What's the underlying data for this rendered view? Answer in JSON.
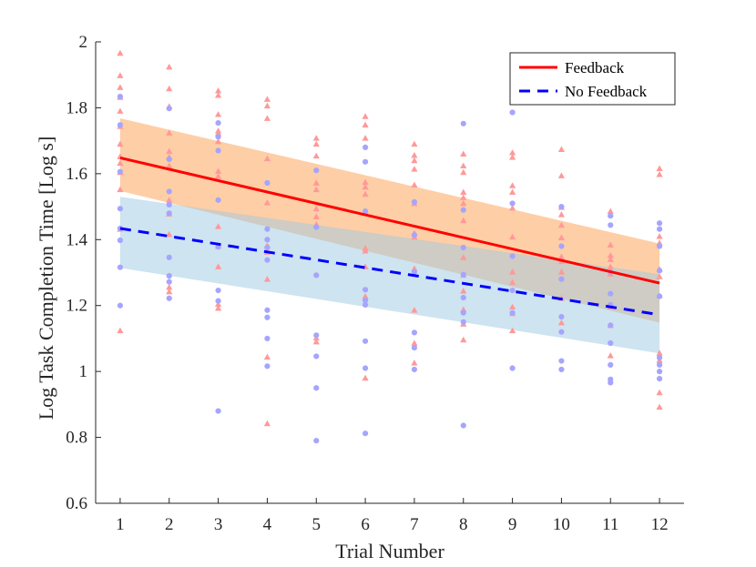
{
  "chart_data": {
    "type": "scatter",
    "title": "",
    "xlabel": "Trial Number",
    "ylabel": "Log Task Completion Time [Log s]",
    "xlim": [
      0.5,
      12.5
    ],
    "ylim": [
      0.6,
      2.0
    ],
    "x_ticks": [
      1,
      2,
      3,
      4,
      5,
      6,
      7,
      8,
      9,
      10,
      11,
      12
    ],
    "y_ticks": [
      "0.6",
      "0.8",
      "1",
      "1.2",
      "1.4",
      "1.6",
      "1.8",
      "2"
    ],
    "legend_position": "top-right",
    "legend": [
      {
        "name": "Feedback",
        "style": "solid",
        "color": "#ff0000"
      },
      {
        "name": "No Feedback",
        "style": "dashed",
        "color": "#0000ff"
      }
    ],
    "series": [
      {
        "name": "Feedback",
        "marker": "triangle",
        "marker_color": "#ff9999",
        "line_color": "#ff0000",
        "band_color": "#fdae6b",
        "fit_line": {
          "x": [
            1,
            12
          ],
          "y": [
            1.648,
            1.268
          ]
        },
        "band": {
          "x": [
            1,
            12
          ],
          "lower": [
            1.548,
            1.148
          ],
          "upper": [
            1.768,
            1.388
          ]
        },
        "points": [
          [
            1,
            1.966
          ],
          [
            1,
            1.898
          ],
          [
            1,
            1.862
          ],
          [
            1,
            1.832
          ],
          [
            1,
            1.79
          ],
          [
            1,
            1.744
          ],
          [
            1,
            1.69
          ],
          [
            1,
            1.652
          ],
          [
            1,
            1.632
          ],
          [
            1,
            1.604
          ],
          [
            1,
            1.552
          ],
          [
            1,
            1.432
          ],
          [
            1,
            1.124
          ],
          [
            2,
            1.924
          ],
          [
            2,
            1.858
          ],
          [
            2,
            1.804
          ],
          [
            2,
            1.724
          ],
          [
            2,
            1.668
          ],
          [
            2,
            1.65
          ],
          [
            2,
            1.624
          ],
          [
            2,
            1.52
          ],
          [
            2,
            1.478
          ],
          [
            2,
            1.416
          ],
          [
            2,
            1.256
          ],
          [
            2,
            1.242
          ],
          [
            3,
            1.852
          ],
          [
            3,
            1.838
          ],
          [
            3,
            1.78
          ],
          [
            3,
            1.73
          ],
          [
            3,
            1.722
          ],
          [
            3,
            1.698
          ],
          [
            3,
            1.608
          ],
          [
            3,
            1.592
          ],
          [
            3,
            1.44
          ],
          [
            3,
            1.38
          ],
          [
            3,
            1.318
          ],
          [
            3,
            1.204
          ],
          [
            3,
            1.192
          ],
          [
            4,
            1.826
          ],
          [
            4,
            1.806
          ],
          [
            4,
            1.768
          ],
          [
            4,
            1.646
          ],
          [
            4,
            1.512
          ],
          [
            4,
            1.382
          ],
          [
            4,
            1.362
          ],
          [
            4,
            1.28
          ],
          [
            4,
            1.044
          ],
          [
            4,
            0.842
          ],
          [
            5,
            1.708
          ],
          [
            5,
            1.69
          ],
          [
            5,
            1.654
          ],
          [
            5,
            1.572
          ],
          [
            5,
            1.552
          ],
          [
            5,
            1.494
          ],
          [
            5,
            1.47
          ],
          [
            5,
            1.446
          ],
          [
            5,
            1.102
          ],
          [
            5,
            1.09
          ],
          [
            6,
            1.774
          ],
          [
            6,
            1.748
          ],
          [
            6,
            1.708
          ],
          [
            6,
            1.574
          ],
          [
            6,
            1.56
          ],
          [
            6,
            1.538
          ],
          [
            6,
            1.486
          ],
          [
            6,
            1.374
          ],
          [
            6,
            1.366
          ],
          [
            6,
            1.318
          ],
          [
            6,
            1.228
          ],
          [
            6,
            0.98
          ],
          [
            7,
            1.69
          ],
          [
            7,
            1.656
          ],
          [
            7,
            1.64
          ],
          [
            7,
            1.614
          ],
          [
            7,
            1.566
          ],
          [
            7,
            1.51
          ],
          [
            7,
            1.42
          ],
          [
            7,
            1.408
          ],
          [
            7,
            1.312
          ],
          [
            7,
            1.186
          ],
          [
            7,
            1.086
          ],
          [
            7,
            1.026
          ],
          [
            8,
            1.66
          ],
          [
            8,
            1.624
          ],
          [
            8,
            1.604
          ],
          [
            8,
            1.544
          ],
          [
            8,
            1.528
          ],
          [
            8,
            1.51
          ],
          [
            8,
            1.458
          ],
          [
            8,
            1.346
          ],
          [
            8,
            1.292
          ],
          [
            8,
            1.244
          ],
          [
            8,
            1.188
          ],
          [
            8,
            1.144
          ],
          [
            8,
            1.096
          ],
          [
            9,
            1.664
          ],
          [
            9,
            1.65
          ],
          [
            9,
            1.564
          ],
          [
            9,
            1.544
          ],
          [
            9,
            1.496
          ],
          [
            9,
            1.408
          ],
          [
            9,
            1.302
          ],
          [
            9,
            1.27
          ],
          [
            9,
            1.196
          ],
          [
            9,
            1.176
          ],
          [
            9,
            1.124
          ],
          [
            10,
            1.674
          ],
          [
            10,
            1.594
          ],
          [
            10,
            1.498
          ],
          [
            10,
            1.476
          ],
          [
            10,
            1.444
          ],
          [
            10,
            1.406
          ],
          [
            10,
            1.348
          ],
          [
            10,
            1.334
          ],
          [
            10,
            1.302
          ],
          [
            10,
            1.222
          ],
          [
            10,
            1.148
          ],
          [
            11,
            1.486
          ],
          [
            11,
            1.478
          ],
          [
            11,
            1.384
          ],
          [
            11,
            1.352
          ],
          [
            11,
            1.34
          ],
          [
            11,
            1.318
          ],
          [
            11,
            1.296
          ],
          [
            11,
            1.196
          ],
          [
            11,
            1.14
          ],
          [
            11,
            1.048
          ],
          [
            12,
            1.616
          ],
          [
            12,
            1.598
          ],
          [
            12,
            1.41
          ],
          [
            12,
            1.39
          ],
          [
            12,
            1.31
          ],
          [
            12,
            1.288
          ],
          [
            12,
            1.23
          ],
          [
            12,
            1.056
          ],
          [
            12,
            1.034
          ],
          [
            12,
            0.936
          ],
          [
            12,
            0.892
          ]
        ]
      },
      {
        "name": "No Feedback",
        "marker": "circle",
        "marker_color": "#a5a5ff",
        "line_color": "#0000ff",
        "band_color": "#9ecae1",
        "fit_line": {
          "x": [
            1,
            12
          ],
          "y": [
            1.434,
            1.172
          ]
        },
        "band": {
          "x": [
            1,
            12
          ],
          "lower": [
            1.314,
            1.055
          ],
          "upper": [
            1.53,
            1.295
          ]
        },
        "points": [
          [
            1,
            1.834
          ],
          [
            1,
            1.748
          ],
          [
            1,
            1.606
          ],
          [
            1,
            1.494
          ],
          [
            1,
            1.434
          ],
          [
            1,
            1.398
          ],
          [
            1,
            1.316
          ],
          [
            1,
            1.2
          ],
          [
            2,
            1.798
          ],
          [
            2,
            1.644
          ],
          [
            2,
            1.546
          ],
          [
            2,
            1.506
          ],
          [
            2,
            1.48
          ],
          [
            2,
            1.346
          ],
          [
            2,
            1.29
          ],
          [
            2,
            1.272
          ],
          [
            2,
            1.222
          ],
          [
            3,
            1.754
          ],
          [
            3,
            1.712
          ],
          [
            3,
            1.67
          ],
          [
            3,
            1.52
          ],
          [
            3,
            1.378
          ],
          [
            3,
            1.246
          ],
          [
            3,
            1.214
          ],
          [
            3,
            0.88
          ],
          [
            4,
            1.572
          ],
          [
            4,
            1.432
          ],
          [
            4,
            1.4
          ],
          [
            4,
            1.376
          ],
          [
            4,
            1.338
          ],
          [
            4,
            1.186
          ],
          [
            4,
            1.164
          ],
          [
            4,
            1.1
          ],
          [
            4,
            1.016
          ],
          [
            5,
            1.61
          ],
          [
            5,
            1.438
          ],
          [
            5,
            1.292
          ],
          [
            5,
            1.11
          ],
          [
            5,
            1.046
          ],
          [
            5,
            0.95
          ],
          [
            5,
            0.79
          ],
          [
            6,
            1.68
          ],
          [
            6,
            1.636
          ],
          [
            6,
            1.486
          ],
          [
            6,
            1.248
          ],
          [
            6,
            1.216
          ],
          [
            6,
            1.202
          ],
          [
            6,
            1.092
          ],
          [
            6,
            1.01
          ],
          [
            6,
            0.812
          ],
          [
            7,
            1.514
          ],
          [
            7,
            1.414
          ],
          [
            7,
            1.302
          ],
          [
            7,
            1.118
          ],
          [
            7,
            1.072
          ],
          [
            7,
            1.006
          ],
          [
            8,
            1.752
          ],
          [
            8,
            1.49
          ],
          [
            8,
            1.376
          ],
          [
            8,
            1.294
          ],
          [
            8,
            1.224
          ],
          [
            8,
            1.178
          ],
          [
            8,
            1.15
          ],
          [
            8,
            0.836
          ],
          [
            9,
            1.786
          ],
          [
            9,
            1.51
          ],
          [
            9,
            1.35
          ],
          [
            9,
            1.246
          ],
          [
            9,
            1.178
          ],
          [
            9,
            1.01
          ],
          [
            10,
            1.5
          ],
          [
            10,
            1.38
          ],
          [
            10,
            1.28
          ],
          [
            10,
            1.166
          ],
          [
            10,
            1.12
          ],
          [
            10,
            1.032
          ],
          [
            10,
            1.006
          ],
          [
            11,
            1.472
          ],
          [
            11,
            1.444
          ],
          [
            11,
            1.302
          ],
          [
            11,
            1.236
          ],
          [
            11,
            1.202
          ],
          [
            11,
            1.14
          ],
          [
            11,
            1.086
          ],
          [
            11,
            1.02
          ],
          [
            11,
            0.976
          ],
          [
            11,
            0.966
          ],
          [
            12,
            1.45
          ],
          [
            12,
            1.432
          ],
          [
            12,
            1.38
          ],
          [
            12,
            1.306
          ],
          [
            12,
            1.228
          ],
          [
            12,
            1.042
          ],
          [
            12,
            1.02
          ],
          [
            12,
            1.0
          ],
          [
            12,
            0.978
          ]
        ]
      }
    ]
  }
}
